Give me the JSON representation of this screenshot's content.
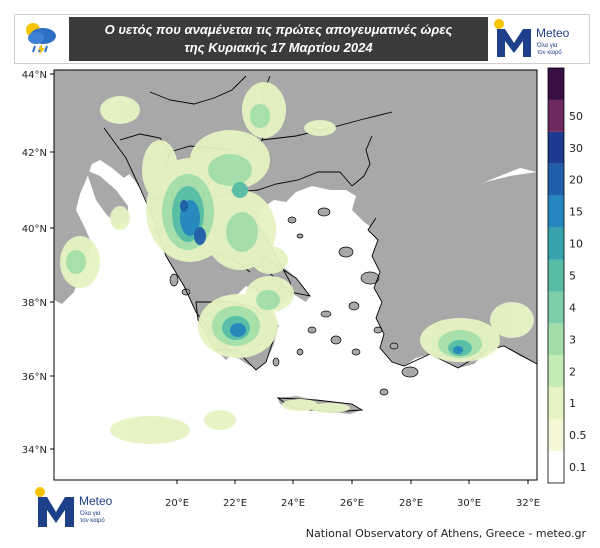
{
  "header": {
    "title_line1": "Ο υετός που αναμένεται τις πρώτες απογευματινές ώρες",
    "title_line2": "της Κυριακής 17 Μαρτίου 2024",
    "weather_icon": "rain-cloud-icon"
  },
  "brand": {
    "name": "Meteo",
    "tagline_line1": "Όλα για",
    "tagline_line2": "τον καιρό",
    "color_blue": "#1e3f8a",
    "color_yellow": "#f5c400"
  },
  "map": {
    "lat_labels": [
      "44°N",
      "42°N",
      "40°N",
      "38°N",
      "36°N",
      "34°N"
    ],
    "lon_labels": [
      "20°E",
      "22°E",
      "24°E",
      "26°E",
      "28°E",
      "30°E",
      "32°E"
    ],
    "lat_range": [
      33.5,
      44.0
    ],
    "lon_range": [
      17.5,
      32.5
    ],
    "land_color": "#a8a8a8",
    "sea_color": "#ffffff"
  },
  "colorbar": {
    "labels": [
      "0.1",
      "0.5",
      "1",
      "2",
      "3",
      "4",
      "5",
      "10",
      "15",
      "20",
      "30",
      "50"
    ],
    "colors": [
      "#ffffff",
      "#f6f7d6",
      "#e6f3c2",
      "#c6ebb4",
      "#a3deaa",
      "#7ccfa6",
      "#56bca6",
      "#36a3ae",
      "#2487bd",
      "#205fab",
      "#1c3a8f",
      "#6e2a5e",
      "#3a0f45"
    ]
  },
  "footer": {
    "credit": "National Observatory of Athens, Greece - meteo.gr"
  }
}
